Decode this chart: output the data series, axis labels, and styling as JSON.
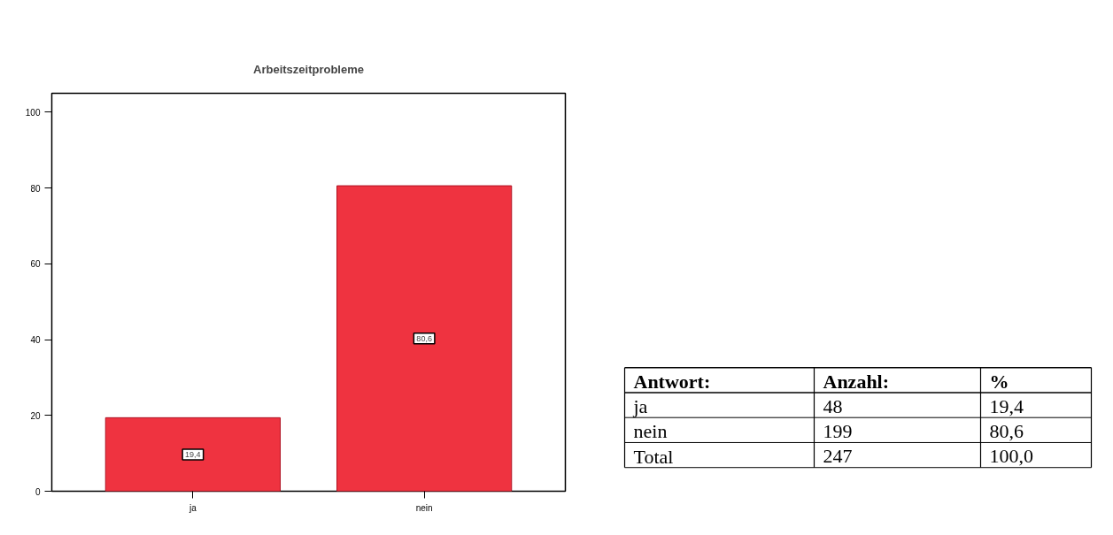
{
  "chart_data": [
    {
      "type": "bar",
      "title": "Arbeitszeitprobleme",
      "categories": [
        "ja",
        "nein"
      ],
      "values": [
        19.4,
        80.6
      ],
      "value_labels": [
        "19,4",
        "80,6"
      ],
      "color": "#ef3340",
      "ylim": [
        0,
        105
      ],
      "yticks": [
        0,
        20,
        40,
        60,
        80,
        100
      ],
      "grid": false
    },
    {
      "type": "other",
      "annotations": [
        "Antwort:",
        "Anzahl:",
        "%",
        "ja",
        "48",
        "19,4",
        "nein",
        "199",
        "80,6",
        "Total",
        "247",
        "100,0"
      ]
    }
  ]
}
